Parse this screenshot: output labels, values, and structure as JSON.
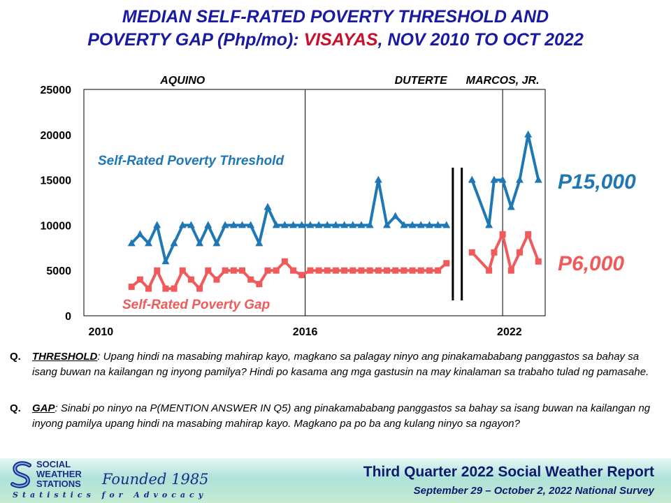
{
  "title": {
    "line1": "MEDIAN SELF-RATED POVERTY THRESHOLD AND",
    "line2_prefix": "POVERTY GAP (Php/mo): ",
    "line2_highlight": "VISAYAS",
    "line2_suffix": ", NOV 2010 TO OCT 2022"
  },
  "chart_data": {
    "type": "line",
    "ylim": [
      0,
      25000
    ],
    "yticks": [
      "0",
      "5000",
      "10000",
      "15000",
      "20000",
      "25000"
    ],
    "xticks": [
      {
        "label": "2010",
        "x": 2010
      },
      {
        "label": "2016",
        "x": 2016
      },
      {
        "label": "2022",
        "x": 2022
      }
    ],
    "grid": false,
    "presidencies": [
      {
        "label": "AQUINO",
        "center": 2012.4
      },
      {
        "label": "DUTERTE",
        "center": 2019.4
      },
      {
        "label": "MARCOS, JR.",
        "center": 2021.8
      }
    ],
    "reference_lines": [
      2016.0,
      2021.8
    ],
    "series": [
      {
        "name": "Self-Rated Poverty Threshold",
        "color": "#1f77b4",
        "marker": "triangle",
        "end_label": "P15,000",
        "segments": [
          [
            [
              2010.9,
              8000
            ],
            [
              2011.15,
              9000
            ],
            [
              2011.4,
              8000
            ],
            [
              2011.65,
              10000
            ],
            [
              2011.9,
              6000
            ],
            [
              2012.15,
              8000
            ],
            [
              2012.4,
              10000
            ],
            [
              2012.65,
              10000
            ],
            [
              2012.9,
              8000
            ],
            [
              2013.15,
              10000
            ],
            [
              2013.4,
              8000
            ],
            [
              2013.65,
              10000
            ],
            [
              2013.9,
              10000
            ],
            [
              2014.15,
              10000
            ],
            [
              2014.4,
              10000
            ],
            [
              2014.65,
              8000
            ],
            [
              2014.9,
              12000
            ],
            [
              2015.15,
              10000
            ],
            [
              2015.4,
              10000
            ],
            [
              2015.65,
              10000
            ],
            [
              2015.9,
              10000
            ],
            [
              2016.15,
              10000
            ],
            [
              2016.4,
              10000
            ],
            [
              2016.65,
              10000
            ],
            [
              2016.9,
              10000
            ],
            [
              2017.15,
              10000
            ],
            [
              2017.4,
              10000
            ],
            [
              2017.65,
              10000
            ],
            [
              2017.9,
              10000
            ],
            [
              2018.15,
              15000
            ],
            [
              2018.4,
              10000
            ],
            [
              2018.65,
              11000
            ],
            [
              2018.9,
              10000
            ],
            [
              2019.15,
              10000
            ],
            [
              2019.4,
              10000
            ],
            [
              2019.65,
              10000
            ],
            [
              2019.9,
              10000
            ],
            [
              2020.15,
              10000
            ]
          ],
          [
            [
              2020.9,
              15000
            ],
            [
              2021.4,
              10000
            ],
            [
              2021.55,
              15000
            ],
            [
              2021.8,
              15000
            ],
            [
              2022.05,
              12000
            ],
            [
              2022.3,
              15000
            ],
            [
              2022.55,
              20000
            ],
            [
              2022.85,
              15000
            ]
          ]
        ]
      },
      {
        "name": "Self-Rated Poverty Gap",
        "color": "#f05a5a",
        "marker": "square",
        "end_label": "P6,000",
        "segments": [
          [
            [
              2010.9,
              3200
            ],
            [
              2011.15,
              4000
            ],
            [
              2011.4,
              3000
            ],
            [
              2011.65,
              5000
            ],
            [
              2011.9,
              3000
            ],
            [
              2012.15,
              3000
            ],
            [
              2012.4,
              5000
            ],
            [
              2012.65,
              4000
            ],
            [
              2012.9,
              3000
            ],
            [
              2013.15,
              5000
            ],
            [
              2013.4,
              4000
            ],
            [
              2013.65,
              5000
            ],
            [
              2013.9,
              5000
            ],
            [
              2014.15,
              5000
            ],
            [
              2014.4,
              4000
            ],
            [
              2014.65,
              3500
            ],
            [
              2014.9,
              5000
            ],
            [
              2015.15,
              5000
            ],
            [
              2015.4,
              6000
            ],
            [
              2015.65,
              5000
            ],
            [
              2015.9,
              4500
            ],
            [
              2016.15,
              5000
            ],
            [
              2016.4,
              5000
            ],
            [
              2016.65,
              5000
            ],
            [
              2016.9,
              5000
            ],
            [
              2017.15,
              5000
            ],
            [
              2017.4,
              5000
            ],
            [
              2017.65,
              5000
            ],
            [
              2017.9,
              5000
            ],
            [
              2018.15,
              5000
            ],
            [
              2018.4,
              5000
            ],
            [
              2018.65,
              5000
            ],
            [
              2018.9,
              5000
            ],
            [
              2019.15,
              5000
            ],
            [
              2019.4,
              5000
            ],
            [
              2019.65,
              5000
            ],
            [
              2019.9,
              5000
            ],
            [
              2020.15,
              5800
            ]
          ],
          [
            [
              2020.9,
              7000
            ],
            [
              2021.4,
              5000
            ],
            [
              2021.55,
              7000
            ],
            [
              2021.8,
              9000
            ],
            [
              2022.05,
              5000
            ],
            [
              2022.3,
              7000
            ],
            [
              2022.55,
              9000
            ],
            [
              2022.85,
              6000
            ]
          ]
        ]
      }
    ]
  },
  "questions": [
    {
      "q": "Q.",
      "label": "THRESHOLD",
      "text": ": Upang hindi na masabing mahirap kayo, magkano sa palagay ninyo ang pinakamababang panggastos sa bahay sa isang buwan na kailangan ng inyong pamilya? Hindi po kasama ang mga gastusin na may kinalaman sa trabaho tulad ng pamasahe."
    },
    {
      "q": "Q.",
      "label": "GAP",
      "text": ": Sinabi po ninyo na P(MENTION ANSWER IN Q5) ang pinakamababang panggastos sa bahay sa isang buwan na kailangan ng inyong pamilya upang hindi na masabing mahirap kayo. Magkano pa po ba ang kulang ninyo sa ngayon?"
    }
  ],
  "footer": {
    "org_line1": "SOCIAL",
    "org_line2": "WEATHER",
    "org_line3": "STATIONS",
    "founded": "Founded 1985",
    "tagline": "Statistics for Advocacy",
    "report_title": "Third Quarter 2022 Social Weather Report",
    "report_sub": "September 29 – October 2, 2022 National Survey"
  }
}
